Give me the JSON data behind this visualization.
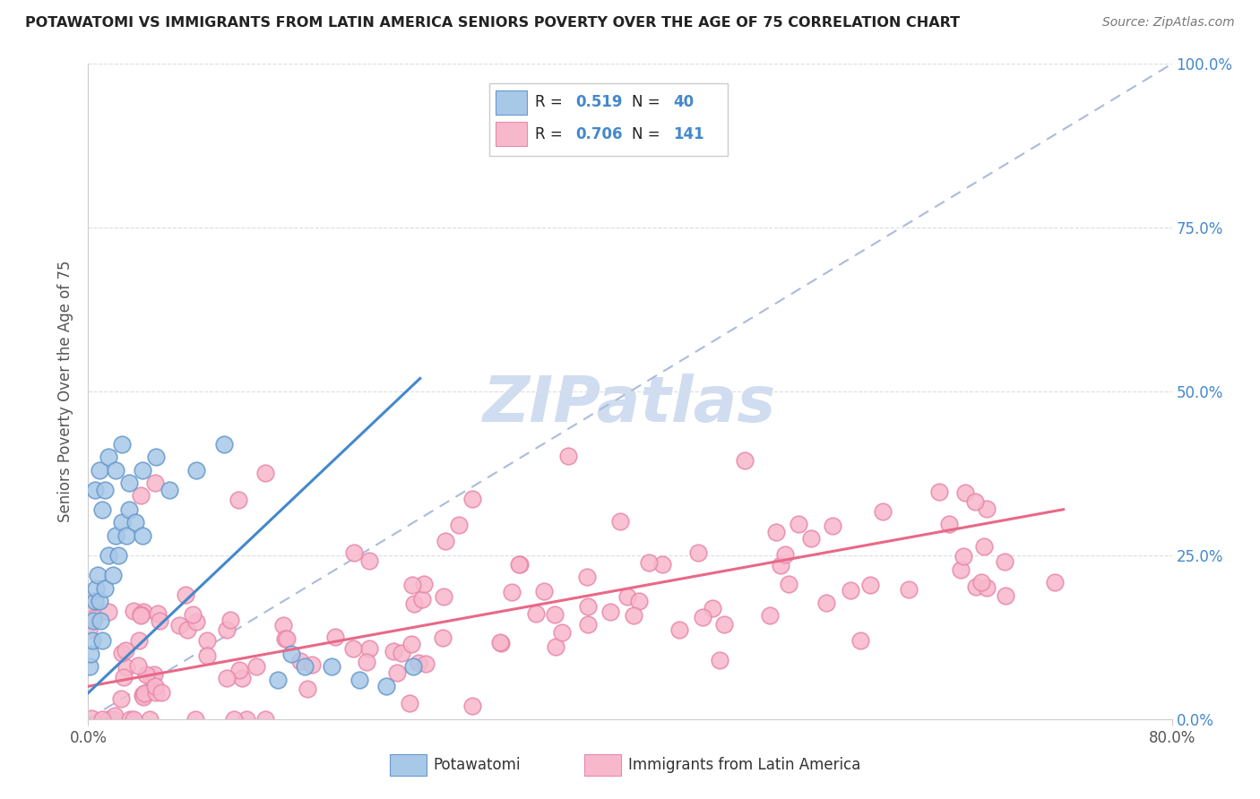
{
  "title": "POTAWATOMI VS IMMIGRANTS FROM LATIN AMERICA SENIORS POVERTY OVER THE AGE OF 75 CORRELATION CHART",
  "source": "Source: ZipAtlas.com",
  "ylabel": "Seniors Poverty Over the Age of 75",
  "xlim": [
    0.0,
    0.8
  ],
  "ylim": [
    0.0,
    1.0
  ],
  "blue_color": "#a8c8e8",
  "blue_edge_color": "#6699cc",
  "blue_line_color": "#4488cc",
  "pink_color": "#f8b8cc",
  "pink_edge_color": "#e888aa",
  "pink_line_color": "#e86888",
  "diag_color": "#aabbdd",
  "text_color_blue": "#4488cc",
  "text_color_dark": "#333333",
  "watermark_color": "#d0ddf0",
  "legend_R_N_color": "#4488cc",
  "legend_label_color": "#222222",
  "right_tick_color": "#4488cc"
}
